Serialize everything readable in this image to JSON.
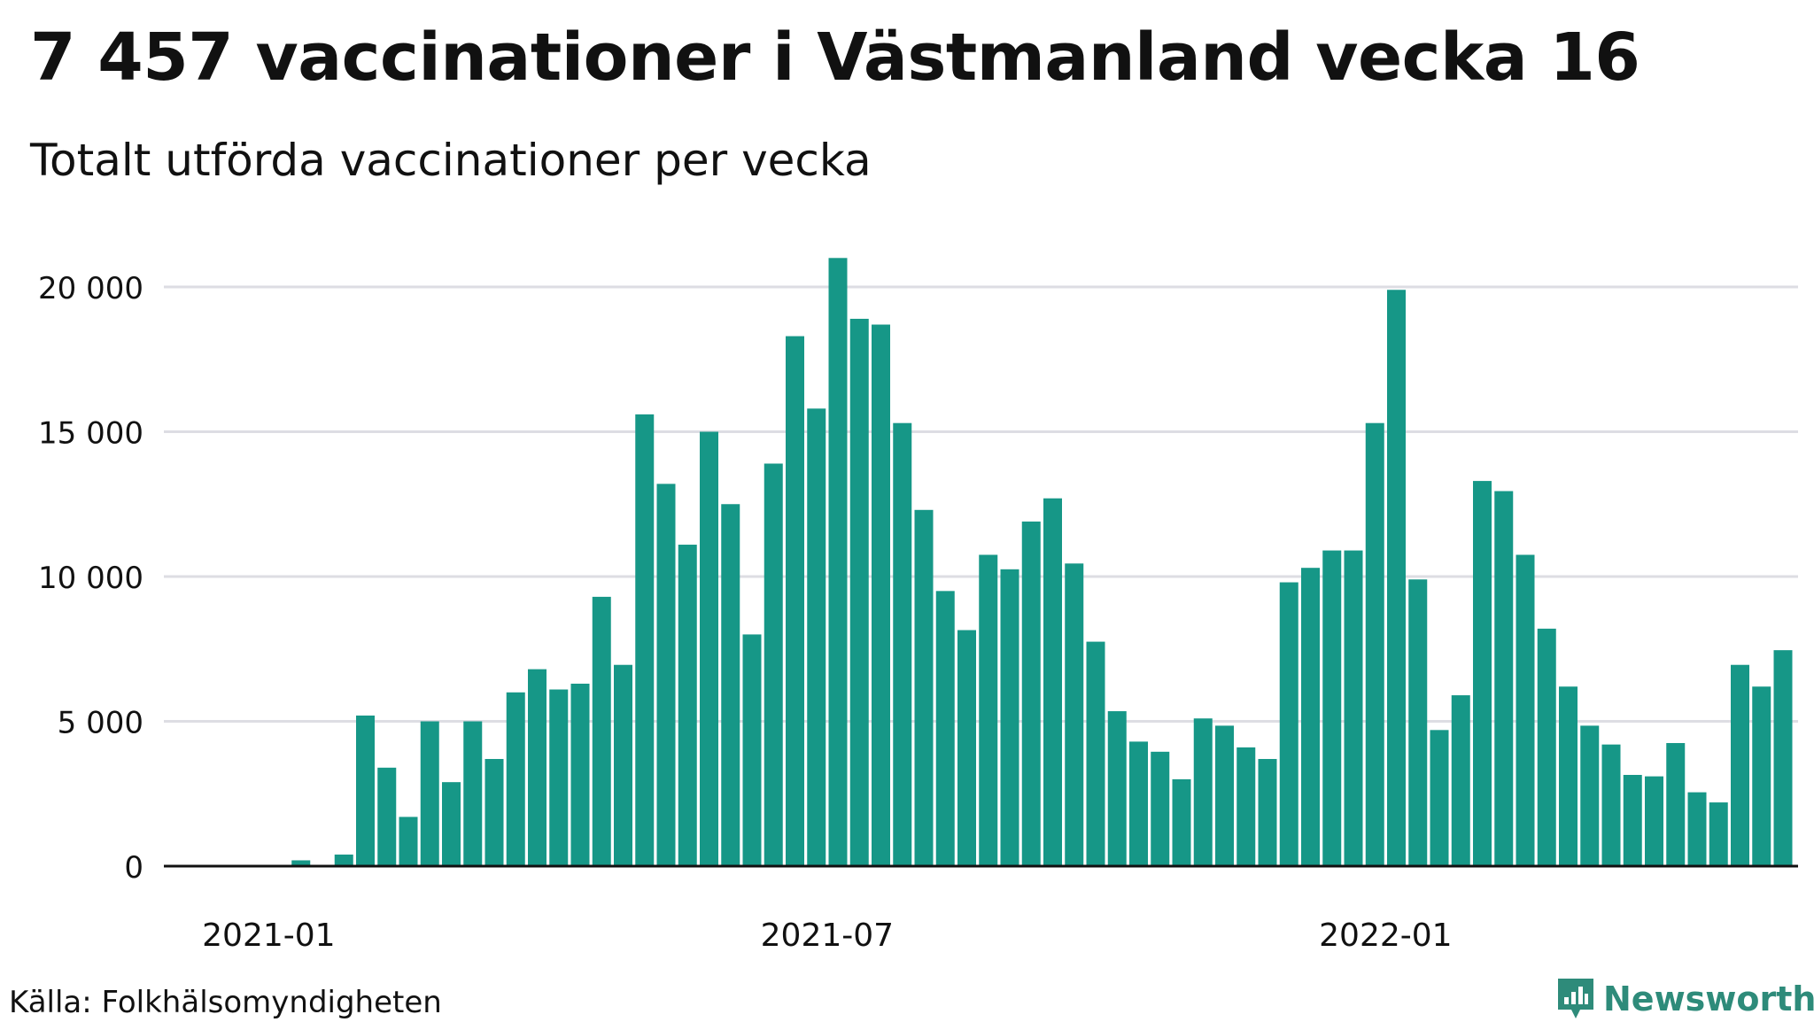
{
  "title": "7 457 vaccinationer i Västmanland vecka 16",
  "subtitle": "Totalt utförda vaccinationer per vecka",
  "source": "Källa: Folkhälsomyndigheten",
  "brand": {
    "name": "Newsworthy",
    "icon": "newsworthy-logo-icon",
    "color": "#2e8b7a"
  },
  "colors": {
    "bar": "#169787",
    "grid": "#dddde3",
    "axis": "#111111",
    "text": "#111111"
  },
  "chart_data": {
    "type": "bar",
    "title": "7 457 vaccinationer i Västmanland vecka 16",
    "subtitle": "Totalt utförda vaccinationer per vecka",
    "xlabel": "",
    "ylabel": "",
    "ylim": [
      0,
      21000
    ],
    "yticks": [
      0,
      5000,
      10000,
      15000,
      20000
    ],
    "ytick_labels": [
      "0",
      "5 000",
      "10 000",
      "15 000",
      "20 000"
    ],
    "xtick_labels": [
      "2021-01",
      "2021-07",
      "2022-01"
    ],
    "xtick_weeks": [
      1.5,
      27.5,
      53.5
    ],
    "grid": true,
    "series": [
      {
        "values": [
          0,
          0,
          0,
          200,
          0,
          400,
          5200,
          3400,
          1700,
          5000,
          2900,
          5000,
          3700,
          6000,
          6800,
          6100,
          6300,
          9300,
          6950,
          15600,
          13200,
          11100,
          15000,
          12500,
          8000,
          13900,
          18300,
          15800,
          21000,
          18900,
          18700,
          15300,
          12300,
          9500,
          8150,
          10750,
          10250,
          11900,
          12700,
          10450,
          7750,
          5350,
          4300,
          3950,
          3000,
          5100,
          4850,
          4100,
          3700,
          9800,
          10300,
          10900,
          10900,
          15300,
          19900,
          9900,
          4700,
          5900,
          13300,
          12950,
          10750,
          8200,
          6200,
          4850,
          4200,
          3150,
          3100,
          4250,
          2550,
          2200,
          6950,
          6200,
          7457
        ]
      }
    ]
  }
}
